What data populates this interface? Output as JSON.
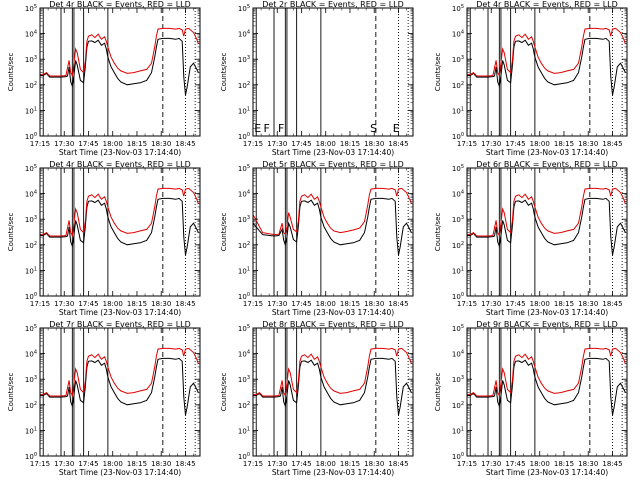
{
  "figure": {
    "background": "#ffffff",
    "colors": {
      "events": "#000000",
      "lld": "#e00000",
      "axes": "#000000"
    }
  },
  "chart_data": [
    {
      "type": "line",
      "title": "Det 4r BLACK = Events, RED = LLD",
      "xlabel": "Start Time (23-Nov-03 17:14:40)",
      "ylabel": "Counts/sec",
      "yscale": "log",
      "ylim": [
        1,
        100000
      ],
      "xlim_minutes": [
        0,
        99
      ],
      "xtick_labels": [
        "17:15",
        "17:30",
        "17:45",
        "18:00",
        "18:15",
        "18:30",
        "18:45"
      ],
      "ytick_labels": [
        "10^0",
        "10^1",
        "10^2",
        "10^3",
        "10^4",
        "10^5"
      ],
      "flags": [],
      "series": [
        {
          "name": "Events",
          "color": "#000000",
          "variant": "det4"
        },
        {
          "name": "LLD",
          "color": "#e00000",
          "variant": "det4"
        }
      ]
    },
    {
      "type": "line",
      "title": "Det 2r BLACK = Events, RED = LLD",
      "xlabel": "Start Time (23-Nov-03 17:14:40)",
      "ylabel": "Counts/sec",
      "yscale": "log",
      "ylim": [
        1,
        100000
      ],
      "xlim_minutes": [
        0,
        99
      ],
      "xtick_labels": [
        "17:15",
        "17:30",
        "17:45",
        "18:00",
        "18:15",
        "18:30",
        "18:45"
      ],
      "ytick_labels": [
        "10^0",
        "10^1",
        "10^2",
        "10^3",
        "10^4",
        "10^5"
      ],
      "flags": [
        "E",
        "F",
        "F",
        "S",
        "E"
      ],
      "series": []
    },
    {
      "type": "line",
      "title": "Det 4r BLACK = Events, RED = LLD",
      "xlabel": "Start Time (23-Nov-03 17:14:40)",
      "ylabel": "Counts/sec",
      "yscale": "log",
      "ylim": [
        1,
        100000
      ],
      "xlim_minutes": [
        0,
        99
      ],
      "xtick_labels": [
        "17:15",
        "17:30",
        "17:45",
        "18:00",
        "18:15",
        "18:30",
        "18:45"
      ],
      "ytick_labels": [
        "10^0",
        "10^1",
        "10^2",
        "10^3",
        "10^4",
        "10^5"
      ],
      "flags": [],
      "series": [
        {
          "name": "Events",
          "color": "#000000",
          "variant": "det4"
        },
        {
          "name": "LLD",
          "color": "#e00000",
          "variant": "det4"
        }
      ]
    },
    {
      "type": "line",
      "title": "Det 4r BLACK = Events, RED = LLD",
      "xlabel": "Start Time (23-Nov-03 17:14:40)",
      "ylabel": "Counts/sec",
      "yscale": "log",
      "ylim": [
        1,
        100000
      ],
      "xlim_minutes": [
        0,
        99
      ],
      "xtick_labels": [
        "17:15",
        "17:30",
        "17:45",
        "18:00",
        "18:15",
        "18:30",
        "18:45"
      ],
      "ytick_labels": [
        "10^0",
        "10^1",
        "10^2",
        "10^3",
        "10^4",
        "10^5"
      ],
      "flags": [],
      "series": [
        {
          "name": "Events",
          "color": "#000000",
          "variant": "det4"
        },
        {
          "name": "LLD",
          "color": "#e00000",
          "variant": "det4"
        }
      ]
    },
    {
      "type": "line",
      "title": "Det 5r BLACK = Events, RED = LLD",
      "xlabel": "Start Time (23-Nov-03 17:14:40)",
      "ylabel": "Counts/sec",
      "yscale": "log",
      "ylim": [
        1,
        100000
      ],
      "xlim_minutes": [
        0,
        99
      ],
      "xtick_labels": [
        "17:15",
        "17:30",
        "17:45",
        "18:00",
        "18:15",
        "18:30",
        "18:45"
      ],
      "ytick_labels": [
        "10^0",
        "10^1",
        "10^2",
        "10^3",
        "10^4",
        "10^5"
      ],
      "flags": [],
      "series": [
        {
          "name": "Events",
          "color": "#000000",
          "variant": "det5"
        },
        {
          "name": "LLD",
          "color": "#e00000",
          "variant": "det5"
        }
      ]
    },
    {
      "type": "line",
      "title": "Det 6r BLACK = Events, RED = LLD",
      "xlabel": "Start Time (23-Nov-03 17:14:40)",
      "ylabel": "Counts/sec",
      "yscale": "log",
      "ylim": [
        1,
        100000
      ],
      "xlim_minutes": [
        0,
        99
      ],
      "xtick_labels": [
        "17:15",
        "17:30",
        "17:45",
        "18:00",
        "18:15",
        "18:30",
        "18:45"
      ],
      "ytick_labels": [
        "10^0",
        "10^1",
        "10^2",
        "10^3",
        "10^4",
        "10^5"
      ],
      "flags": [],
      "series": [
        {
          "name": "Events",
          "color": "#000000",
          "variant": "det4"
        },
        {
          "name": "LLD",
          "color": "#e00000",
          "variant": "det4"
        }
      ]
    },
    {
      "type": "line",
      "title": "Det 7r BLACK = Events, RED = LLD",
      "xlabel": "Start Time (23-Nov-03 17:14:40)",
      "ylabel": "Counts/sec",
      "yscale": "log",
      "ylim": [
        1,
        100000
      ],
      "xlim_minutes": [
        0,
        99
      ],
      "xtick_labels": [
        "17:15",
        "17:30",
        "17:45",
        "18:00",
        "18:15",
        "18:30",
        "18:45"
      ],
      "ytick_labels": [
        "10^0",
        "10^1",
        "10^2",
        "10^3",
        "10^4",
        "10^5"
      ],
      "flags": [],
      "series": [
        {
          "name": "Events",
          "color": "#000000",
          "variant": "det4"
        },
        {
          "name": "LLD",
          "color": "#e00000",
          "variant": "det4"
        }
      ]
    },
    {
      "type": "line",
      "title": "Det 8r BLACK = Events, RED = LLD",
      "xlabel": "Start Time (23-Nov-03 17:14:40)",
      "ylabel": "Counts/sec",
      "yscale": "log",
      "ylim": [
        1,
        100000
      ],
      "xlim_minutes": [
        0,
        99
      ],
      "xtick_labels": [
        "17:15",
        "17:30",
        "17:45",
        "18:00",
        "18:15",
        "18:30",
        "18:45"
      ],
      "ytick_labels": [
        "10^0",
        "10^1",
        "10^2",
        "10^3",
        "10^4",
        "10^5"
      ],
      "flags": [],
      "series": [
        {
          "name": "Events",
          "color": "#000000",
          "variant": "det4"
        },
        {
          "name": "LLD",
          "color": "#e00000",
          "variant": "det4"
        }
      ]
    },
    {
      "type": "line",
      "title": "Det 9r BLACK = Events, RED = LLD",
      "xlabel": "Start Time (23-Nov-03 17:14:40)",
      "ylabel": "Counts/sec",
      "yscale": "log",
      "ylim": [
        1,
        100000
      ],
      "xlim_minutes": [
        0,
        99
      ],
      "xtick_labels": [
        "17:15",
        "17:30",
        "17:45",
        "18:00",
        "18:15",
        "18:30",
        "18:45"
      ],
      "ytick_labels": [
        "10^0",
        "10^1",
        "10^2",
        "10^3",
        "10^4",
        "10^5"
      ],
      "flags": [],
      "series": [
        {
          "name": "Events",
          "color": "#000000",
          "variant": "det4"
        },
        {
          "name": "LLD",
          "color": "#e00000",
          "variant": "det4"
        }
      ]
    }
  ],
  "markers": {
    "solid_minutes": [
      2,
      13,
      20,
      21,
      27,
      42
    ],
    "dashed_minutes": [
      76
    ],
    "dotted_minutes": [
      90,
      96
    ]
  },
  "profiles": {
    "det4": {
      "lld": [
        [
          0,
          250
        ],
        [
          2,
          250
        ],
        [
          4,
          300
        ],
        [
          6,
          220
        ],
        [
          13,
          220
        ],
        [
          16,
          230
        ],
        [
          18,
          900
        ],
        [
          19,
          300
        ],
        [
          20,
          230
        ],
        [
          21,
          700
        ],
        [
          22,
          2500
        ],
        [
          23,
          1800
        ],
        [
          25,
          400
        ],
        [
          27,
          300
        ],
        [
          28,
          800
        ],
        [
          29,
          5000
        ],
        [
          30,
          8000
        ],
        [
          32,
          9000
        ],
        [
          34,
          7000
        ],
        [
          36,
          9500
        ],
        [
          38,
          6000
        ],
        [
          40,
          7500
        ],
        [
          41,
          5000
        ],
        [
          42,
          3000
        ],
        [
          44,
          1200
        ],
        [
          46,
          700
        ],
        [
          48,
          450
        ],
        [
          50,
          350
        ],
        [
          54,
          280
        ],
        [
          58,
          300
        ],
        [
          62,
          350
        ],
        [
          66,
          400
        ],
        [
          69,
          700
        ],
        [
          71,
          3000
        ],
        [
          72,
          8000
        ],
        [
          73,
          15000
        ],
        [
          76,
          16000
        ],
        [
          80,
          16000
        ],
        [
          84,
          15000
        ],
        [
          86,
          16000
        ],
        [
          88,
          14000
        ],
        [
          89,
          8000
        ],
        [
          90,
          15000
        ],
        [
          92,
          16000
        ],
        [
          95,
          11000
        ],
        [
          97,
          6000
        ],
        [
          98,
          4000
        ]
      ],
      "events": [
        [
          0,
          230
        ],
        [
          2,
          230
        ],
        [
          4,
          280
        ],
        [
          6,
          200
        ],
        [
          13,
          200
        ],
        [
          16,
          210
        ],
        [
          17,
          220
        ],
        [
          18,
          500
        ],
        [
          19,
          130
        ],
        [
          20,
          90
        ],
        [
          21,
          220
        ],
        [
          22,
          900
        ],
        [
          23,
          600
        ],
        [
          25,
          150
        ],
        [
          27,
          120
        ],
        [
          28,
          500
        ],
        [
          29,
          3000
        ],
        [
          30,
          5000
        ],
        [
          32,
          5200
        ],
        [
          34,
          4500
        ],
        [
          36,
          5500
        ],
        [
          38,
          3500
        ],
        [
          40,
          4200
        ],
        [
          41,
          2500
        ],
        [
          42,
          1200
        ],
        [
          44,
          500
        ],
        [
          46,
          300
        ],
        [
          48,
          180
        ],
        [
          50,
          130
        ],
        [
          54,
          100
        ],
        [
          58,
          110
        ],
        [
          62,
          120
        ],
        [
          66,
          150
        ],
        [
          69,
          300
        ],
        [
          71,
          1200
        ],
        [
          72,
          3000
        ],
        [
          73,
          6000
        ],
        [
          76,
          6500
        ],
        [
          80,
          6500
        ],
        [
          84,
          6000
        ],
        [
          86,
          6500
        ],
        [
          88,
          5000
        ],
        [
          89,
          200
        ],
        [
          90,
          40
        ],
        [
          91,
          80
        ],
        [
          93,
          500
        ],
        [
          95,
          700
        ],
        [
          97,
          400
        ],
        [
          98,
          300
        ]
      ]
    },
    "det5": {
      "lld": [
        [
          0,
          1500
        ],
        [
          2,
          900
        ],
        [
          4,
          500
        ],
        [
          6,
          300
        ],
        [
          13,
          250
        ],
        [
          16,
          260
        ],
        [
          18,
          700
        ],
        [
          19,
          300
        ],
        [
          20,
          260
        ],
        [
          21,
          500
        ],
        [
          22,
          1800
        ],
        [
          23,
          1200
        ],
        [
          25,
          400
        ],
        [
          27,
          320
        ],
        [
          28,
          800
        ],
        [
          29,
          5000
        ],
        [
          30,
          8000
        ],
        [
          32,
          9000
        ],
        [
          34,
          7000
        ],
        [
          36,
          9500
        ],
        [
          38,
          6000
        ],
        [
          40,
          7500
        ],
        [
          41,
          5000
        ],
        [
          42,
          3000
        ],
        [
          44,
          1200
        ],
        [
          46,
          700
        ],
        [
          48,
          450
        ],
        [
          50,
          350
        ],
        [
          54,
          300
        ],
        [
          58,
          330
        ],
        [
          62,
          380
        ],
        [
          66,
          450
        ],
        [
          69,
          800
        ],
        [
          71,
          3500
        ],
        [
          72,
          9000
        ],
        [
          73,
          15000
        ],
        [
          76,
          16000
        ],
        [
          80,
          16000
        ],
        [
          84,
          15000
        ],
        [
          86,
          16000
        ],
        [
          88,
          14000
        ],
        [
          89,
          8000
        ],
        [
          90,
          15000
        ],
        [
          92,
          16000
        ],
        [
          95,
          11000
        ],
        [
          97,
          6000
        ],
        [
          98,
          4000
        ]
      ],
      "events": [
        [
          0,
          700
        ],
        [
          2,
          500
        ],
        [
          4,
          350
        ],
        [
          6,
          250
        ],
        [
          13,
          220
        ],
        [
          16,
          230
        ],
        [
          18,
          400
        ],
        [
          19,
          150
        ],
        [
          20,
          100
        ],
        [
          21,
          200
        ],
        [
          22,
          700
        ],
        [
          23,
          500
        ],
        [
          25,
          160
        ],
        [
          27,
          130
        ],
        [
          28,
          500
        ],
        [
          29,
          3000
        ],
        [
          30,
          5000
        ],
        [
          32,
          5200
        ],
        [
          34,
          4500
        ],
        [
          36,
          5500
        ],
        [
          38,
          3500
        ],
        [
          40,
          4200
        ],
        [
          41,
          2500
        ],
        [
          42,
          1200
        ],
        [
          44,
          500
        ],
        [
          46,
          300
        ],
        [
          48,
          180
        ],
        [
          50,
          130
        ],
        [
          54,
          100
        ],
        [
          58,
          110
        ],
        [
          62,
          120
        ],
        [
          66,
          150
        ],
        [
          69,
          300
        ],
        [
          71,
          1200
        ],
        [
          72,
          3000
        ],
        [
          73,
          6000
        ],
        [
          76,
          6500
        ],
        [
          80,
          6500
        ],
        [
          84,
          6000
        ],
        [
          86,
          6500
        ],
        [
          88,
          5000
        ],
        [
          89,
          200
        ],
        [
          90,
          40
        ],
        [
          91,
          80
        ],
        [
          93,
          500
        ],
        [
          95,
          700
        ],
        [
          97,
          400
        ],
        [
          98,
          300
        ]
      ]
    }
  }
}
